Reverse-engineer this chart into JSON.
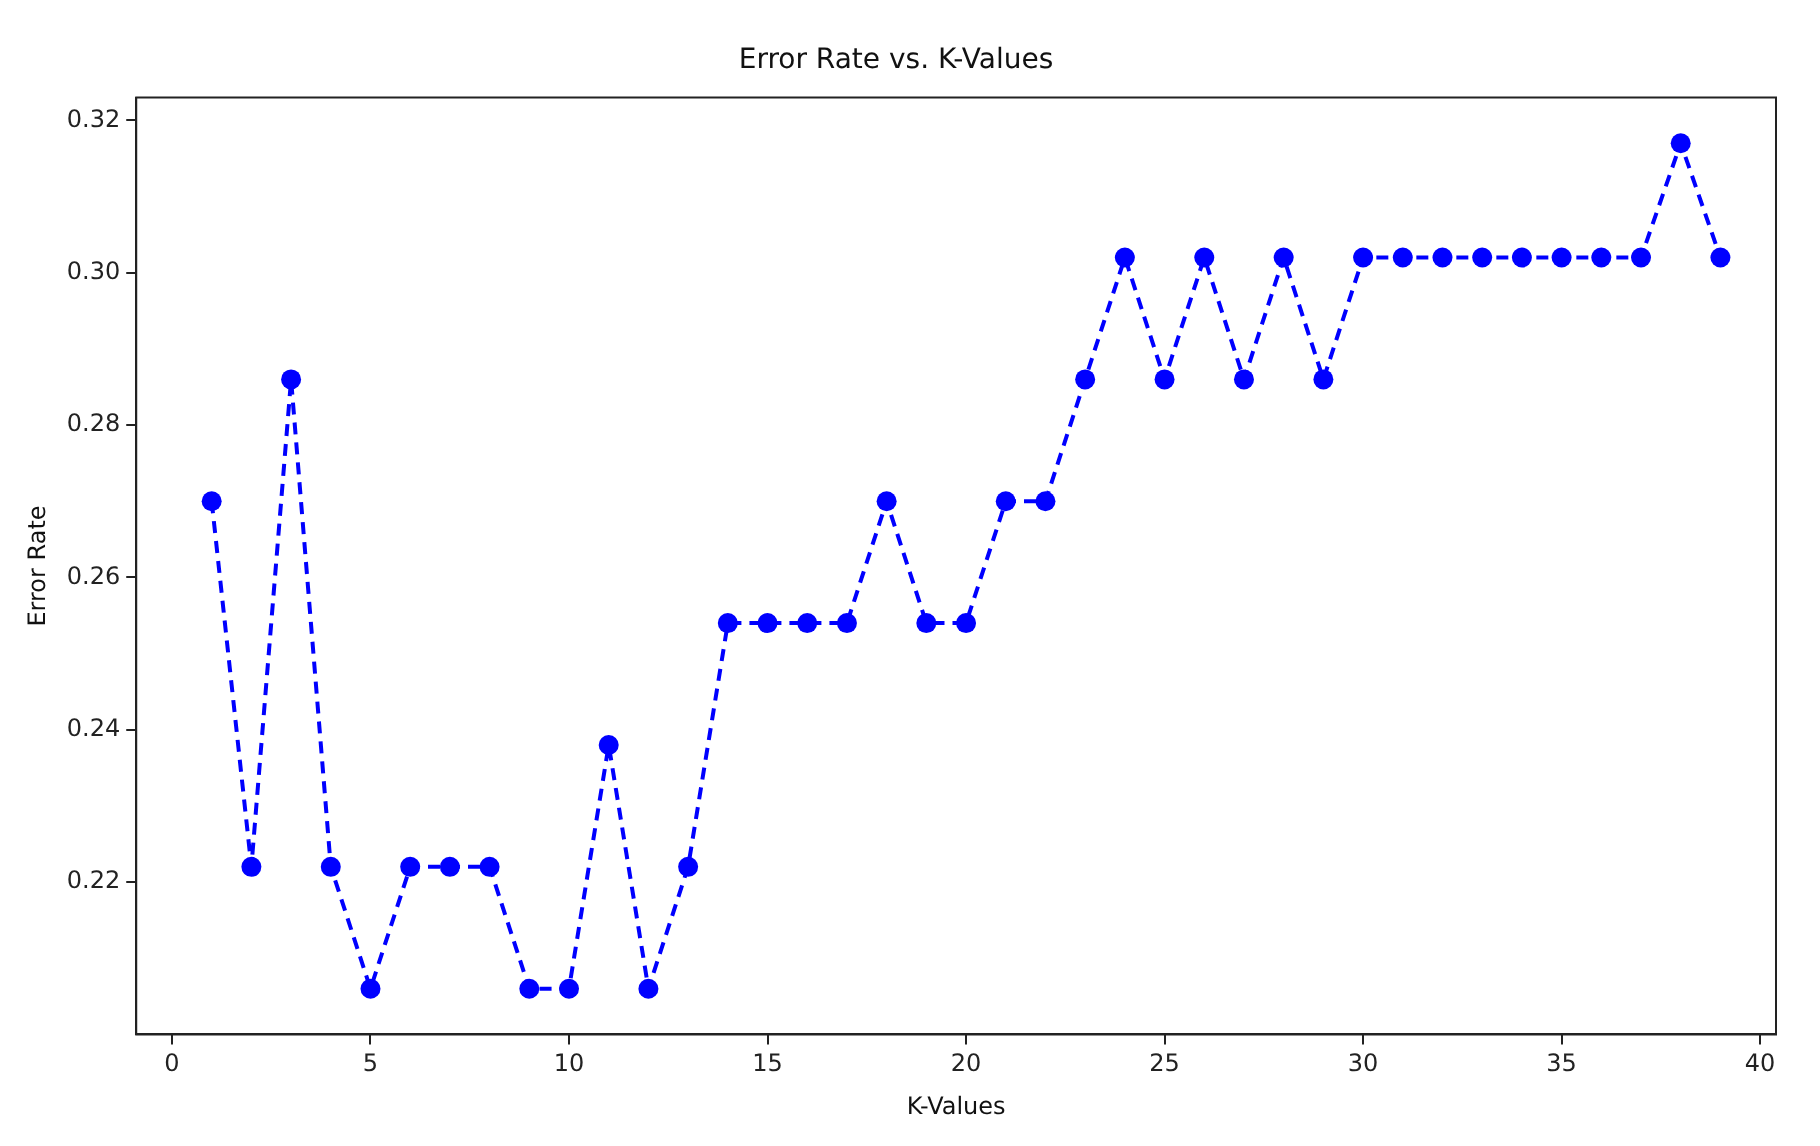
{
  "chart_data": {
    "type": "line",
    "title": "Error Rate vs. K-Values",
    "xlabel": "K-Values",
    "ylabel": "Error Rate",
    "x": [
      1,
      2,
      3,
      4,
      5,
      6,
      7,
      8,
      9,
      10,
      11,
      12,
      13,
      14,
      15,
      16,
      17,
      18,
      19,
      20,
      21,
      22,
      23,
      24,
      25,
      26,
      27,
      28,
      29,
      30,
      31,
      32,
      33,
      34,
      35,
      36,
      37,
      38,
      39
    ],
    "series": [
      {
        "color": "#0000ff",
        "values": [
          0.27,
          0.222,
          0.286,
          0.222,
          0.206,
          0.222,
          0.222,
          0.222,
          0.206,
          0.206,
          0.238,
          0.206,
          0.222,
          0.254,
          0.254,
          0.254,
          0.254,
          0.27,
          0.254,
          0.254,
          0.27,
          0.27,
          0.286,
          0.302,
          0.286,
          0.302,
          0.286,
          0.302,
          0.286,
          0.302,
          0.302,
          0.302,
          0.302,
          0.302,
          0.302,
          0.302,
          0.302,
          0.317,
          0.302
        ]
      }
    ],
    "xlim": [
      -0.9,
      40.4
    ],
    "xticks": [
      0,
      5,
      10,
      15,
      20,
      25,
      30,
      35,
      40
    ],
    "ylim": [
      0.2,
      0.323
    ],
    "yticks": [
      {
        "value": 0.22,
        "label": "0.22"
      },
      {
        "value": 0.24,
        "label": "0.24"
      },
      {
        "value": 0.26,
        "label": "0.26"
      },
      {
        "value": 0.28,
        "label": "0.28"
      },
      {
        "value": 0.3,
        "label": "0.30"
      },
      {
        "value": 0.32,
        "label": "0.32"
      }
    ],
    "grid": false,
    "legend": false,
    "marker": "circle",
    "line_style": "dashed"
  }
}
